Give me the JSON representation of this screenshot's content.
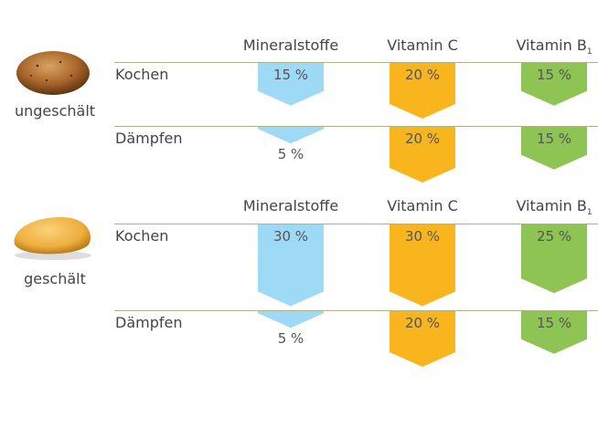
{
  "chart_data": {
    "type": "bar",
    "orientation": "downward-arrows",
    "unit": "%",
    "categories": [
      "Mineralstoffe",
      "Vitamin C",
      "Vitamin B1"
    ],
    "category_labels": [
      {
        "text": "Mineralstoffe",
        "sub": ""
      },
      {
        "text": "Vitamin C",
        "sub": ""
      },
      {
        "text": "Vitamin B",
        "sub": "1"
      }
    ],
    "colors": [
      "#9ed9f6",
      "#f8b51d",
      "#8dc454"
    ],
    "groups": [
      {
        "label": "ungeschält",
        "image": "unpeeled-potato",
        "rows": [
          {
            "method": "Kochen",
            "values": [
              15,
              20,
              15
            ],
            "labels": [
              "15 %",
              "20 %",
              "15 %"
            ]
          },
          {
            "method": "Dämpfen",
            "values": [
              5,
              20,
              15
            ],
            "labels": [
              "5 %",
              "20 %",
              "15 %"
            ]
          }
        ]
      },
      {
        "label": "geschält",
        "image": "peeled-potato",
        "rows": [
          {
            "method": "Kochen",
            "values": [
              30,
              30,
              25
            ],
            "labels": [
              "30 %",
              "30 %",
              "25 %"
            ]
          },
          {
            "method": "Dämpfen",
            "values": [
              5,
              20,
              15
            ],
            "labels": [
              "5 %",
              "20 %",
              "15 %"
            ]
          }
        ]
      }
    ]
  }
}
